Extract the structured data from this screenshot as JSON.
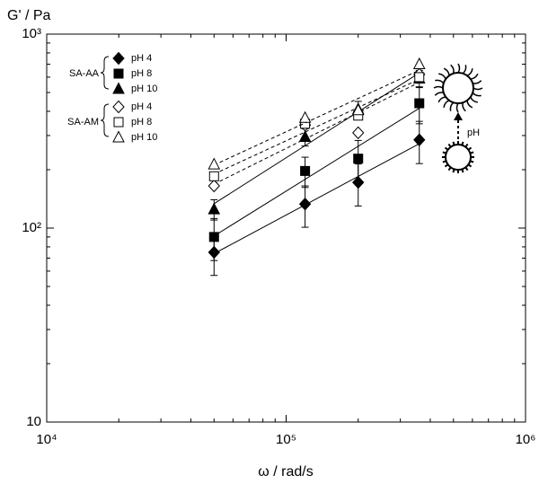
{
  "chart_data": {
    "type": "scatter",
    "x_label": "ω / rad/s",
    "y_label": "G' / Pa",
    "log_x": true,
    "log_y": true,
    "xlim": [
      10000,
      1000000
    ],
    "xticks": [
      {
        "value": 10000,
        "label": "10⁴"
      },
      {
        "value": 100000,
        "label": "10⁵"
      },
      {
        "value": 1000000,
        "label": "10⁶"
      }
    ],
    "ylim": [
      10,
      1000
    ],
    "yticks": [
      10,
      {
        "value": 100,
        "label": "10²"
      },
      {
        "value": 1000,
        "label": "10³"
      }
    ],
    "annotation": "pH",
    "x": [
      50000,
      120000,
      200000,
      360000
    ],
    "groups": [
      {
        "name": "SA-AA",
        "linestyle": "solid",
        "series": [
          {
            "name": "pH 4",
            "marker": "diamond",
            "filled": true,
            "color": "#000000",
            "values": [
              75,
              133,
              172,
              285
            ],
            "errors": [
              18,
              32,
              42,
              70
            ]
          },
          {
            "name": "pH 8",
            "marker": "square",
            "filled": true,
            "color": "#000000",
            "values": [
              90,
              197,
              228,
              440
            ],
            "errors": [
              22,
              35,
              55,
              95
            ]
          },
          {
            "name": "pH 10",
            "marker": "triangle",
            "filled": true,
            "color": "#000000",
            "values": [
              125,
              295,
              410,
              590
            ],
            "errors": [
              15,
              30,
              40,
              60
            ]
          }
        ]
      },
      {
        "name": "SA-AM",
        "linestyle": "dashed",
        "series": [
          {
            "name": "pH 4",
            "marker": "diamond",
            "filled": false,
            "color": "#000000",
            "values": [
              165,
              340,
              310,
              620
            ]
          },
          {
            "name": "pH 8",
            "marker": "square",
            "filled": false,
            "color": "#000000",
            "values": [
              185,
              345,
              380,
              600
            ]
          },
          {
            "name": "pH 10",
            "marker": "triangle",
            "filled": false,
            "color": "#000000",
            "values": [
              213,
              370,
              405,
              700
            ]
          }
        ]
      }
    ]
  }
}
